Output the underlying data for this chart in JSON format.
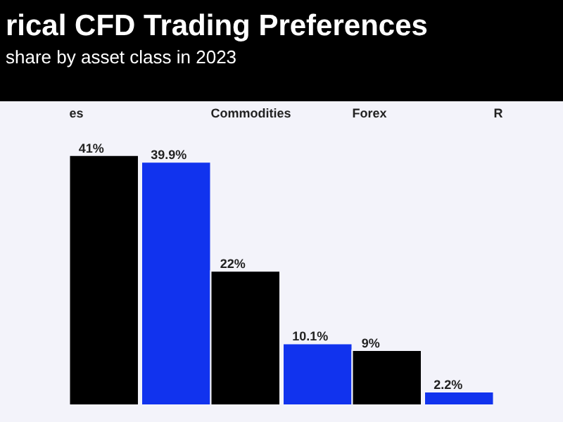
{
  "chart_data": {
    "type": "bar",
    "title": "rical CFD Trading Preferences",
    "subtitle": "share by asset class in 2023",
    "categories": [
      "es",
      "Commodities",
      "Forex",
      "R"
    ],
    "series": [
      {
        "color": "#1133ee",
        "values": [
          null,
          39.9,
          10.1,
          2.2
        ],
        "value_labels": [
          null,
          "39.9%",
          "10.1%",
          "2.2%"
        ]
      },
      {
        "color": "#000000",
        "values": [
          41,
          22,
          9,
          null
        ],
        "value_labels": [
          "41%",
          "22%",
          "9%",
          null
        ]
      }
    ]
  }
}
